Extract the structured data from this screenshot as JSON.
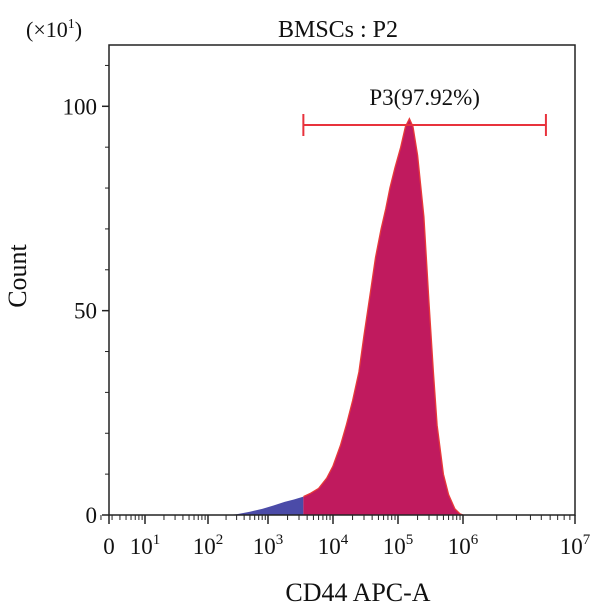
{
  "chart_data": {
    "type": "area",
    "title": "BMSCs : P2",
    "xlabel": "CD44 APC-A",
    "ylabel": "Count",
    "y_multiplier": "(×10",
    "y_multiplier_exp": "1",
    "y_multiplier_close": ")",
    "x_scale": "biexponential",
    "xlim": [
      0,
      10000000
    ],
    "ylim": [
      0,
      115
    ],
    "x_ticks": [
      {
        "value": 0,
        "base": "0",
        "exp": ""
      },
      {
        "value": 10,
        "base": "10",
        "exp": "1"
      },
      {
        "value": 100,
        "base": "10",
        "exp": "2"
      },
      {
        "value": 1000,
        "base": "10",
        "exp": "3"
      },
      {
        "value": 10000,
        "base": "10",
        "exp": "4"
      },
      {
        "value": 100000,
        "base": "10",
        "exp": "5"
      },
      {
        "value": 1000000,
        "base": "10",
        "exp": "6"
      },
      {
        "value": 10000000,
        "base": "10",
        "exp": "7"
      }
    ],
    "y_ticks": [
      {
        "value": 0,
        "label": "0"
      },
      {
        "value": 50,
        "label": "50"
      },
      {
        "value": 100,
        "label": "100"
      }
    ],
    "gate": {
      "name": "P3",
      "label": "P3(97.92%)",
      "start": 3500,
      "end": 5500000,
      "percent": 97.92,
      "color": "#e8323c"
    },
    "series": [
      {
        "fill_ungated": "#4b4ba8",
        "fill_gated": "#c01a5e",
        "outline": "#e83a3a",
        "points": [
          [
            0,
            0
          ],
          [
            1.5,
            0.3
          ],
          [
            3,
            0.1
          ],
          [
            200,
            0
          ],
          [
            300,
            0.2
          ],
          [
            500,
            0.8
          ],
          [
            800,
            1.5
          ],
          [
            1200,
            2.3
          ],
          [
            1800,
            3.2
          ],
          [
            2500,
            3.8
          ],
          [
            3500,
            4.5
          ],
          [
            4500,
            5.3
          ],
          [
            6000,
            6.5
          ],
          [
            8000,
            9
          ],
          [
            10000,
            12
          ],
          [
            13000,
            17
          ],
          [
            16000,
            22
          ],
          [
            20000,
            28
          ],
          [
            25000,
            35
          ],
          [
            30000,
            44
          ],
          [
            38000,
            55
          ],
          [
            45000,
            63
          ],
          [
            55000,
            70
          ],
          [
            65000,
            75
          ],
          [
            75000,
            80
          ],
          [
            90000,
            85
          ],
          [
            110000,
            90
          ],
          [
            130000,
            95
          ],
          [
            150000,
            97
          ],
          [
            170000,
            95
          ],
          [
            200000,
            88
          ],
          [
            250000,
            73
          ],
          [
            300000,
            52
          ],
          [
            350000,
            35
          ],
          [
            400000,
            22
          ],
          [
            500000,
            10
          ],
          [
            600000,
            5
          ],
          [
            750000,
            1.5
          ],
          [
            900000,
            0.3
          ],
          [
            1000000,
            0
          ]
        ]
      }
    ]
  }
}
